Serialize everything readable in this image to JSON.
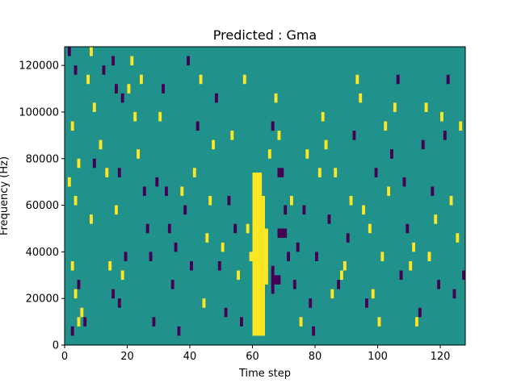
{
  "chart_data": {
    "type": "heatmap",
    "title": "Predicted : Gma",
    "xlabel": "Time step",
    "ylabel": "Frequency (Hz)",
    "xlim": [
      0,
      128
    ],
    "ylim": [
      0,
      128000
    ],
    "x_ticks": [
      0,
      20,
      40,
      60,
      80,
      100,
      120
    ],
    "y_ticks": [
      0,
      20000,
      40000,
      60000,
      80000,
      100000,
      120000
    ],
    "grid": false,
    "legend": "none",
    "colors": {
      "background": "#21918c",
      "high": "#fde725",
      "low": "#440154"
    },
    "value_levels": {
      "background": 0,
      "high": 1,
      "low": -1
    },
    "dense_regions": [
      {
        "level": "high",
        "x": [
          60,
          63
        ],
        "y": [
          4000,
          74000
        ]
      },
      {
        "level": "high",
        "x": [
          63,
          64
        ],
        "y": [
          4000,
          64000
        ]
      },
      {
        "level": "high",
        "x": [
          64,
          65
        ],
        "y": [
          26000,
          50000
        ]
      },
      {
        "level": "low",
        "x": [
          66,
          67
        ],
        "y": [
          22000,
          34000
        ]
      },
      {
        "level": "low",
        "x": [
          67,
          69
        ],
        "y": [
          26000,
          30000
        ]
      },
      {
        "level": "low",
        "x": [
          68,
          71
        ],
        "y": [
          46000,
          50000
        ]
      },
      {
        "level": "low",
        "x": [
          68,
          70
        ],
        "y": [
          72000,
          76000
        ]
      }
    ],
    "cells": [
      [
        1,
        124000,
        -1
      ],
      [
        2,
        4000,
        -1
      ],
      [
        3,
        116000,
        -1
      ],
      [
        4,
        8000,
        1
      ],
      [
        5,
        12000,
        1
      ],
      [
        7,
        112000,
        1
      ],
      [
        8,
        124000,
        1
      ],
      [
        9,
        100000,
        1
      ],
      [
        2,
        92000,
        1
      ],
      [
        3,
        60000,
        1
      ],
      [
        4,
        76000,
        1
      ],
      [
        2,
        32000,
        1
      ],
      [
        1,
        68000,
        1
      ],
      [
        3,
        20000,
        1
      ],
      [
        4,
        24000,
        -1
      ],
      [
        6,
        8000,
        -1
      ],
      [
        8,
        52000,
        1
      ],
      [
        9,
        76000,
        -1
      ],
      [
        12,
        116000,
        -1
      ],
      [
        11,
        84000,
        1
      ],
      [
        13,
        72000,
        1
      ],
      [
        15,
        120000,
        -1
      ],
      [
        16,
        108000,
        -1
      ],
      [
        17,
        72000,
        -1
      ],
      [
        18,
        104000,
        -1
      ],
      [
        14,
        32000,
        1
      ],
      [
        15,
        20000,
        -1
      ],
      [
        16,
        56000,
        1
      ],
      [
        17,
        16000,
        -1
      ],
      [
        18,
        28000,
        1
      ],
      [
        19,
        36000,
        -1
      ],
      [
        20,
        108000,
        1
      ],
      [
        21,
        120000,
        1
      ],
      [
        22,
        96000,
        1
      ],
      [
        23,
        80000,
        1
      ],
      [
        24,
        112000,
        1
      ],
      [
        25,
        64000,
        -1
      ],
      [
        26,
        48000,
        -1
      ],
      [
        27,
        36000,
        -1
      ],
      [
        28,
        8000,
        -1
      ],
      [
        29,
        68000,
        -1
      ],
      [
        30,
        96000,
        1
      ],
      [
        31,
        108000,
        -1
      ],
      [
        32,
        64000,
        -1
      ],
      [
        33,
        48000,
        -1
      ],
      [
        34,
        24000,
        -1
      ],
      [
        35,
        40000,
        -1
      ],
      [
        36,
        4000,
        -1
      ],
      [
        37,
        64000,
        1
      ],
      [
        38,
        56000,
        -1
      ],
      [
        39,
        120000,
        -1
      ],
      [
        40,
        32000,
        -1
      ],
      [
        41,
        72000,
        1
      ],
      [
        42,
        92000,
        -1
      ],
      [
        43,
        112000,
        1
      ],
      [
        44,
        16000,
        1
      ],
      [
        45,
        44000,
        1
      ],
      [
        46,
        60000,
        1
      ],
      [
        47,
        84000,
        1
      ],
      [
        48,
        104000,
        -1
      ],
      [
        49,
        32000,
        -1
      ],
      [
        50,
        40000,
        1
      ],
      [
        51,
        12000,
        -1
      ],
      [
        52,
        60000,
        -1
      ],
      [
        53,
        88000,
        1
      ],
      [
        54,
        48000,
        -1
      ],
      [
        55,
        28000,
        1
      ],
      [
        56,
        8000,
        -1
      ],
      [
        57,
        112000,
        1
      ],
      [
        58,
        48000,
        1
      ],
      [
        59,
        36000,
        1
      ],
      [
        60,
        20000,
        1
      ],
      [
        65,
        80000,
        1
      ],
      [
        66,
        92000,
        -1
      ],
      [
        67,
        104000,
        1
      ],
      [
        68,
        88000,
        1
      ],
      [
        70,
        56000,
        -1
      ],
      [
        71,
        36000,
        -1
      ],
      [
        72,
        60000,
        1
      ],
      [
        73,
        24000,
        -1
      ],
      [
        74,
        40000,
        -1
      ],
      [
        75,
        8000,
        1
      ],
      [
        76,
        56000,
        -1
      ],
      [
        77,
        80000,
        1
      ],
      [
        78,
        16000,
        -1
      ],
      [
        79,
        4000,
        -1
      ],
      [
        80,
        36000,
        -1
      ],
      [
        81,
        72000,
        1
      ],
      [
        82,
        96000,
        1
      ],
      [
        83,
        84000,
        1
      ],
      [
        84,
        52000,
        -1
      ],
      [
        85,
        20000,
        1
      ],
      [
        86,
        72000,
        1
      ],
      [
        87,
        24000,
        -1
      ],
      [
        88,
        28000,
        1
      ],
      [
        89,
        32000,
        1
      ],
      [
        90,
        44000,
        -1
      ],
      [
        91,
        60000,
        1
      ],
      [
        92,
        88000,
        -1
      ],
      [
        93,
        112000,
        1
      ],
      [
        94,
        104000,
        1
      ],
      [
        95,
        56000,
        1
      ],
      [
        96,
        16000,
        -1
      ],
      [
        97,
        48000,
        1
      ],
      [
        98,
        20000,
        1
      ],
      [
        99,
        72000,
        -1
      ],
      [
        100,
        8000,
        1
      ],
      [
        101,
        36000,
        1
      ],
      [
        102,
        92000,
        1
      ],
      [
        103,
        64000,
        1
      ],
      [
        104,
        80000,
        -1
      ],
      [
        105,
        100000,
        1
      ],
      [
        106,
        112000,
        -1
      ],
      [
        107,
        28000,
        -1
      ],
      [
        108,
        68000,
        -1
      ],
      [
        109,
        48000,
        -1
      ],
      [
        110,
        32000,
        1
      ],
      [
        111,
        40000,
        1
      ],
      [
        112,
        8000,
        1
      ],
      [
        113,
        12000,
        -1
      ],
      [
        114,
        84000,
        -1
      ],
      [
        115,
        100000,
        1
      ],
      [
        116,
        36000,
        1
      ],
      [
        117,
        64000,
        -1
      ],
      [
        118,
        52000,
        1
      ],
      [
        119,
        24000,
        -1
      ],
      [
        120,
        96000,
        1
      ],
      [
        121,
        88000,
        -1
      ],
      [
        122,
        112000,
        -1
      ],
      [
        123,
        60000,
        1
      ],
      [
        124,
        20000,
        -1
      ],
      [
        125,
        44000,
        1
      ],
      [
        126,
        92000,
        1
      ],
      [
        127,
        28000,
        -1
      ]
    ]
  }
}
